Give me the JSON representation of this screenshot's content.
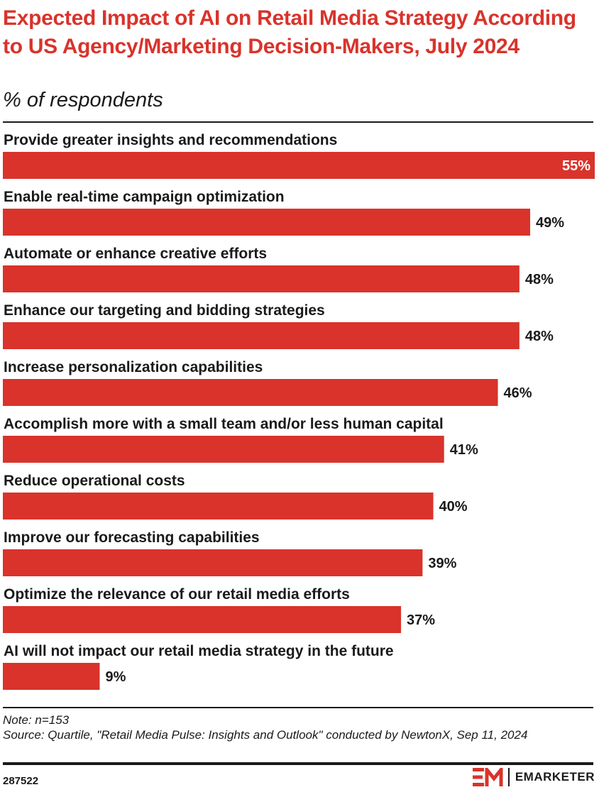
{
  "title": "Expected Impact of AI on Retail Media Strategy According to US Agency/Marketing Decision-Makers, July 2024",
  "subtitle": "% of respondents",
  "chart_data": {
    "type": "bar",
    "orientation": "horizontal",
    "categories": [
      "Provide greater insights and recommendations",
      "Enable real-time campaign optimization",
      "Automate or enhance creative efforts",
      "Enhance our targeting and bidding strategies",
      "Increase personalization capabilities",
      "Accomplish more with a small team and/or less human capital",
      "Reduce operational costs",
      "Improve our forecasting capabilities",
      "Optimize the relevance of our retail media efforts",
      "AI will not impact our retail media strategy in the future"
    ],
    "values": [
      55,
      49,
      48,
      48,
      46,
      41,
      40,
      39,
      37,
      9
    ],
    "value_labels": [
      "55%",
      "49%",
      "48%",
      "48%",
      "46%",
      "41%",
      "40%",
      "39%",
      "37%",
      "9%"
    ],
    "unit": "%",
    "xlim": [
      0,
      55
    ],
    "bar_color": "#d9332b",
    "grid": false,
    "legend": "none"
  },
  "note": "Note: n=153",
  "source": "Source: Quartile, \"Retail Media Pulse: Insights and Outlook\" conducted by NewtonX, Sep 11, 2024",
  "chart_id": "287522",
  "brand": {
    "name": "EMARKETER",
    "logo_text": "EM",
    "logo_icon": "emarketer-logo-icon"
  },
  "colors": {
    "accent": "#d9332b",
    "text": "#1a1a1a",
    "background": "#ffffff"
  }
}
